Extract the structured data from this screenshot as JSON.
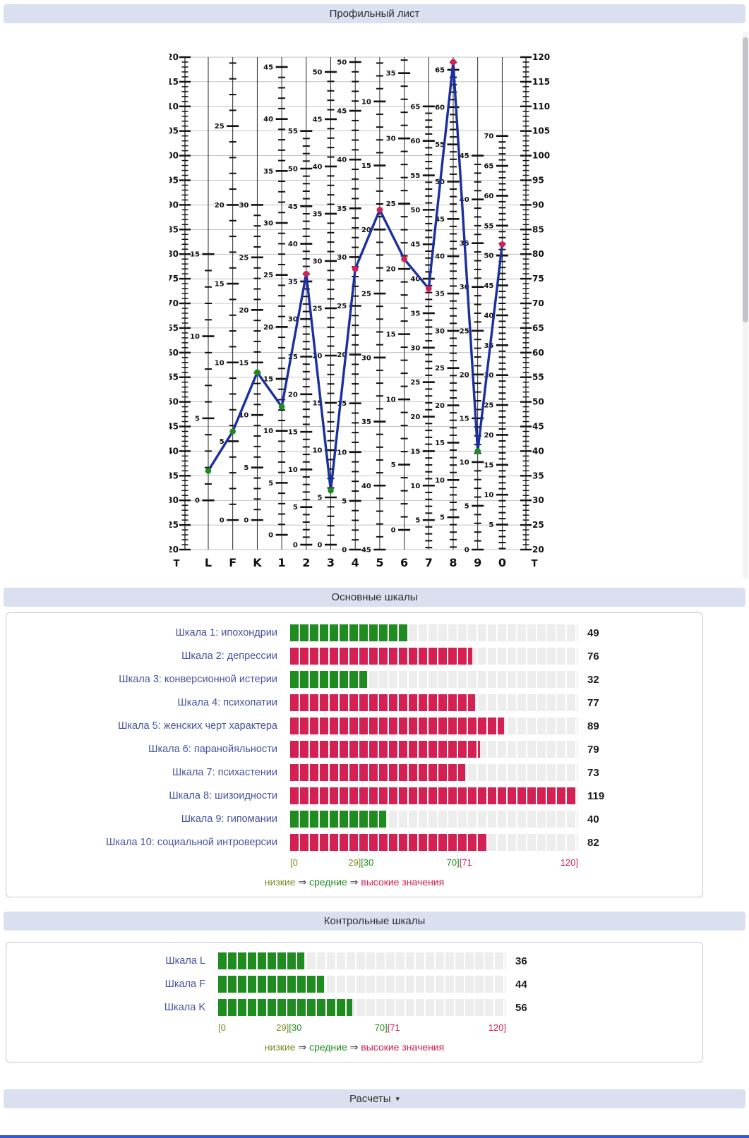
{
  "page": {
    "headers": {
      "profile": "Профильный лист",
      "main_scales": "Основные шкалы",
      "control_scales": "Контрольные шкалы",
      "calculations": "Расчеты",
      "calculations_caret": "▾"
    }
  },
  "colors": {
    "header_bg": "#dbe0f1",
    "low": "#7d8b21",
    "mid": "#1f8c1f",
    "high": "#d42053",
    "line": "#1b2f9e",
    "label": "#4553a1",
    "value": "#1c1c1c",
    "track": "#ededed",
    "accent_line": "#3a55d5",
    "scrollbar": "#c3c3c9"
  },
  "legend": {
    "low": "низкие",
    "arrow": "⇒",
    "mid": "средние",
    "high": "высокие значения"
  },
  "chart_data": [
    {
      "type": "line",
      "title": "Профильный лист",
      "categories": [
        "L",
        "F",
        "K",
        "1",
        "2",
        "3",
        "4",
        "5",
        "6",
        "7",
        "8",
        "9",
        "0"
      ],
      "values": [
        36,
        44,
        56,
        49,
        76,
        32,
        77,
        89,
        79,
        73,
        119,
        40,
        82
      ],
      "ylabel": "Т",
      "axis_corner_label": "Т",
      "ylim": [
        20,
        120
      ],
      "y_tick_step": 5,
      "grid": true,
      "line_color_key": "line",
      "columns": [
        {
          "label": "L",
          "raw_max": 15,
          "t_at_raw0": 30,
          "t_at_rawmax": 80,
          "label_step": 5
        },
        {
          "label": "F",
          "raw_max": 30,
          "t_at_raw0": 26,
          "t_at_rawmax": 122,
          "label_step": 5
        },
        {
          "label": "K",
          "raw_max": 30,
          "t_at_raw0": 26,
          "t_at_rawmax": 90,
          "label_step": 5
        },
        {
          "label": "1",
          "raw_max": 45,
          "t_at_raw0": 23,
          "t_at_rawmax": 118,
          "label_step": 5
        },
        {
          "label": "2",
          "raw_max": 55,
          "t_at_raw0": 21,
          "t_at_rawmax": 105,
          "label_step": 5
        },
        {
          "label": "3",
          "raw_max": 50,
          "t_at_raw0": 21,
          "t_at_rawmax": 117,
          "label_step": 5
        },
        {
          "label": "4",
          "raw_max": 50,
          "t_at_raw0": 20,
          "t_at_rawmax": 119,
          "label_step": 5
        },
        {
          "label": "5",
          "raw_max": 45,
          "t_at_raw0": 137,
          "t_at_rawmax": 20,
          "label_step": 5
        },
        {
          "label": "6",
          "raw_max": 40,
          "t_at_raw0": 24,
          "t_at_rawmax": 130,
          "label_step": 5
        },
        {
          "label": "7",
          "raw_max": 65,
          "t_at_raw0": 19,
          "t_at_rawmax": 110,
          "label_step": 5
        },
        {
          "label": "8",
          "raw_max": 70,
          "t_at_raw0": 19,
          "t_at_rawmax": 125,
          "label_step": 5
        },
        {
          "label": "9",
          "raw_max": 45,
          "t_at_raw0": 20,
          "t_at_rawmax": 100,
          "label_step": 5
        },
        {
          "label": "0",
          "raw_max": 70,
          "t_at_raw0": 19,
          "t_at_rawmax": 104,
          "label_step": 5
        }
      ]
    },
    {
      "type": "bar",
      "title": "Основные шкалы",
      "categories": [
        "Шкала 1: ипохондрии",
        "Шкала 2: депрессии",
        "Шкала 3: конверсионной истерии",
        "Шкала 4: психопатии",
        "Шкала 5: женских черт характера",
        "Шкала 6: паранойяльности",
        "Шкала 7: психастении",
        "Шкала 8: шизоидности",
        "Шкала 9: гипомании",
        "Шкала 10: социальной интроверсии"
      ],
      "values": [
        49,
        76,
        32,
        77,
        89,
        79,
        73,
        119,
        40,
        82
      ],
      "xlim": [
        0,
        120
      ],
      "ranges": {
        "low": [
          0,
          29
        ],
        "mid": [
          30,
          70
        ],
        "high": [
          71,
          120
        ]
      }
    },
    {
      "type": "bar",
      "title": "Контрольные шкалы",
      "categories": [
        "Шкала L",
        "Шкала F",
        "Шкала K"
      ],
      "values": [
        36,
        44,
        56
      ],
      "xlim": [
        0,
        120
      ],
      "ranges": {
        "low": [
          0,
          29
        ],
        "mid": [
          30,
          70
        ],
        "high": [
          71,
          120
        ]
      }
    }
  ]
}
